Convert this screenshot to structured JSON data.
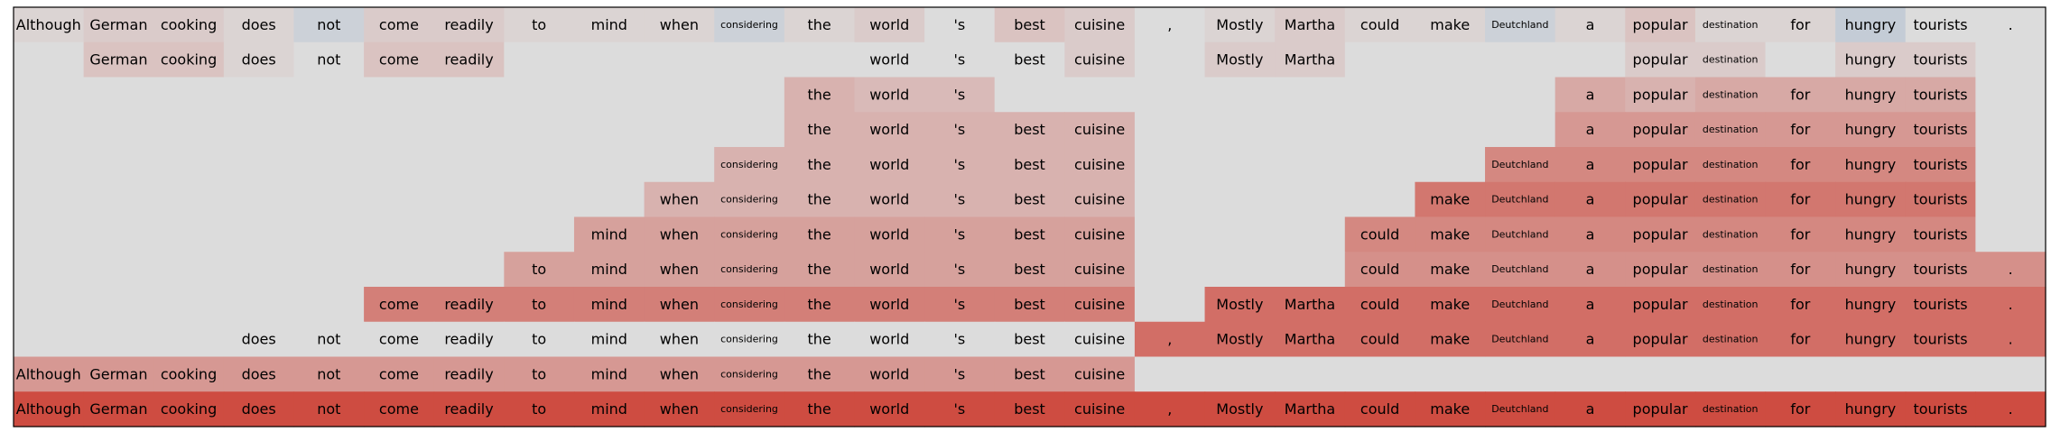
{
  "chart_data": {
    "type": "heatmap",
    "title": "",
    "xlabel": "",
    "ylabel": "",
    "tokens": [
      "Although",
      "German",
      "cooking",
      "does",
      "not",
      "come",
      "readily",
      "to",
      "mind",
      "when",
      "considering",
      "the",
      "world",
      "'s",
      "best",
      "cuisine",
      ",",
      "Mostly",
      "Martha",
      "could",
      "make",
      "Deutchland",
      "a",
      "popular",
      "destination",
      "for",
      "hungry",
      "tourists",
      "."
    ],
    "rows": [
      {
        "shown": [
          0,
          1,
          2,
          3,
          4,
          5,
          6,
          7,
          8,
          9,
          10,
          11,
          12,
          13,
          14,
          15,
          16,
          17,
          18,
          19,
          20,
          21,
          22,
          23,
          24,
          25,
          26,
          27,
          28
        ],
        "values": [
          0.05,
          0.1,
          0.1,
          0.05,
          -0.1,
          0.1,
          0.1,
          0.05,
          0.05,
          0.05,
          -0.1,
          0.05,
          0.1,
          0.0,
          0.15,
          0.1,
          0.0,
          0.05,
          0.1,
          0.05,
          0.05,
          -0.1,
          0.05,
          0.15,
          0.05,
          0.05,
          -0.15,
          0.0,
          0.0
        ]
      },
      {
        "shown": [
          1,
          2,
          3,
          4,
          5,
          6,
          12,
          13,
          14,
          15,
          17,
          18,
          23,
          24,
          26,
          27
        ],
        "values": [
          0.0,
          0.15,
          0.15,
          0.05,
          0.0,
          0.15,
          0.15,
          0.0,
          0.0,
          0.0,
          0.0,
          0.0,
          0.0,
          0.0,
          0.0,
          0.1,
          0.0,
          0.1,
          0.1,
          0.0,
          0.0,
          0.0,
          0.0,
          0.1,
          0.1,
          0.0,
          0.1,
          0.1,
          0.0
        ]
      },
      {
        "shown": [
          11,
          12,
          13,
          22,
          23,
          24,
          25,
          26,
          27
        ],
        "values": [
          0.0,
          0.0,
          0.0,
          0.0,
          0.0,
          0.0,
          0.0,
          0.0,
          0.0,
          0.0,
          0.0,
          0.25,
          0.2,
          0.2,
          0.0,
          0.0,
          0.0,
          0.0,
          0.0,
          0.0,
          0.0,
          0.0,
          0.3,
          0.25,
          0.3,
          0.3,
          0.3,
          0.3,
          0.0
        ]
      },
      {
        "shown": [
          11,
          12,
          13,
          14,
          15,
          22,
          23,
          24,
          25,
          26,
          27
        ],
        "values": [
          0.0,
          0.0,
          0.0,
          0.0,
          0.0,
          0.0,
          0.0,
          0.0,
          0.0,
          0.0,
          0.0,
          0.25,
          0.25,
          0.25,
          0.25,
          0.25,
          0.0,
          0.0,
          0.0,
          0.0,
          0.0,
          0.0,
          0.4,
          0.4,
          0.4,
          0.4,
          0.4,
          0.4,
          0.0
        ]
      },
      {
        "shown": [
          10,
          11,
          12,
          13,
          14,
          15,
          21,
          22,
          23,
          24,
          25,
          26,
          27
        ],
        "values": [
          0.0,
          0.0,
          0.0,
          0.0,
          0.0,
          0.0,
          0.0,
          0.0,
          0.0,
          0.0,
          0.25,
          0.25,
          0.25,
          0.25,
          0.25,
          0.25,
          0.0,
          0.0,
          0.0,
          0.0,
          0.0,
          0.5,
          0.5,
          0.5,
          0.5,
          0.5,
          0.5,
          0.5,
          0.0
        ]
      },
      {
        "shown": [
          9,
          10,
          11,
          12,
          13,
          14,
          15,
          20,
          21,
          22,
          23,
          24,
          25,
          26,
          27
        ],
        "values": [
          0.0,
          0.0,
          0.0,
          0.0,
          0.0,
          0.0,
          0.0,
          0.0,
          0.0,
          0.25,
          0.25,
          0.25,
          0.25,
          0.25,
          0.25,
          0.25,
          0.0,
          0.0,
          0.0,
          0.0,
          0.6,
          0.6,
          0.6,
          0.6,
          0.6,
          0.6,
          0.6,
          0.6,
          0.0
        ]
      },
      {
        "shown": [
          8,
          9,
          10,
          11,
          12,
          13,
          14,
          15,
          19,
          20,
          21,
          22,
          23,
          24,
          25,
          26,
          27
        ],
        "values": [
          0.0,
          0.0,
          0.0,
          0.0,
          0.0,
          0.0,
          0.0,
          0.0,
          0.35,
          0.35,
          0.35,
          0.35,
          0.35,
          0.35,
          0.35,
          0.35,
          0.0,
          0.0,
          0.0,
          0.5,
          0.5,
          0.5,
          0.5,
          0.5,
          0.5,
          0.5,
          0.5,
          0.5,
          0.0
        ]
      },
      {
        "shown": [
          7,
          8,
          9,
          10,
          11,
          12,
          13,
          14,
          15,
          19,
          20,
          21,
          22,
          23,
          24,
          25,
          26,
          27,
          28
        ],
        "values": [
          0.0,
          0.0,
          0.0,
          0.0,
          0.0,
          0.0,
          0.0,
          0.35,
          0.35,
          0.35,
          0.35,
          0.35,
          0.35,
          0.35,
          0.35,
          0.35,
          0.0,
          0.0,
          0.0,
          0.45,
          0.45,
          0.45,
          0.45,
          0.45,
          0.45,
          0.45,
          0.45,
          0.45,
          0.45
        ]
      },
      {
        "shown": [
          5,
          6,
          7,
          8,
          9,
          10,
          11,
          12,
          13,
          14,
          15,
          17,
          18,
          19,
          20,
          21,
          22,
          23,
          24,
          25,
          26,
          27,
          28
        ],
        "values": [
          0.0,
          0.0,
          0.0,
          0.0,
          0.0,
          0.55,
          0.55,
          0.55,
          0.55,
          0.55,
          0.55,
          0.55,
          0.55,
          0.55,
          0.55,
          0.55,
          0.0,
          0.65,
          0.65,
          0.65,
          0.65,
          0.65,
          0.65,
          0.65,
          0.65,
          0.65,
          0.65,
          0.65,
          0.65
        ]
      },
      {
        "shown": [
          3,
          4,
          5,
          6,
          7,
          8,
          9,
          10,
          11,
          12,
          13,
          14,
          15,
          16,
          17,
          18,
          19,
          20,
          21,
          22,
          23,
          24,
          25,
          26,
          27,
          28
        ],
        "values": [
          0.0,
          0.0,
          0.0,
          0.0,
          0.0,
          0.0,
          0.0,
          0.0,
          0.0,
          0.0,
          0.0,
          0.0,
          0.0,
          0.0,
          0.0,
          0.0,
          0.65,
          0.65,
          0.65,
          0.65,
          0.65,
          0.65,
          0.65,
          0.65,
          0.65,
          0.65,
          0.65,
          0.65,
          0.65
        ]
      },
      {
        "shown": [
          0,
          1,
          2,
          3,
          4,
          5,
          6,
          7,
          8,
          9,
          10,
          11,
          12,
          13,
          14,
          15
        ],
        "values": [
          0.4,
          0.4,
          0.4,
          0.4,
          0.4,
          0.4,
          0.4,
          0.4,
          0.4,
          0.4,
          0.4,
          0.4,
          0.4,
          0.4,
          0.4,
          0.4,
          0.0,
          0.0,
          0.0,
          0.0,
          0.0,
          0.0,
          0.0,
          0.0,
          0.0,
          0.0,
          0.0,
          0.0,
          0.0
        ]
      },
      {
        "shown": [
          0,
          1,
          2,
          3,
          4,
          5,
          6,
          7,
          8,
          9,
          10,
          11,
          12,
          13,
          14,
          15,
          16,
          17,
          18,
          19,
          20,
          21,
          22,
          23,
          24,
          25,
          26,
          27,
          28
        ],
        "values": [
          0.85,
          0.85,
          0.85,
          0.85,
          0.85,
          0.85,
          0.85,
          0.85,
          0.85,
          0.85,
          0.85,
          0.85,
          0.85,
          0.85,
          0.85,
          0.85,
          0.85,
          0.85,
          0.85,
          0.85,
          0.85,
          0.85,
          0.85,
          0.85,
          0.85,
          0.85,
          0.85,
          0.85,
          0.85
        ]
      }
    ],
    "value_range": [
      -1,
      1
    ],
    "colormap": {
      "negative": "#3b6fb6",
      "neutral": "#dcdcdc",
      "positive": "#cc3326"
    },
    "grid": false,
    "legend": "none"
  }
}
